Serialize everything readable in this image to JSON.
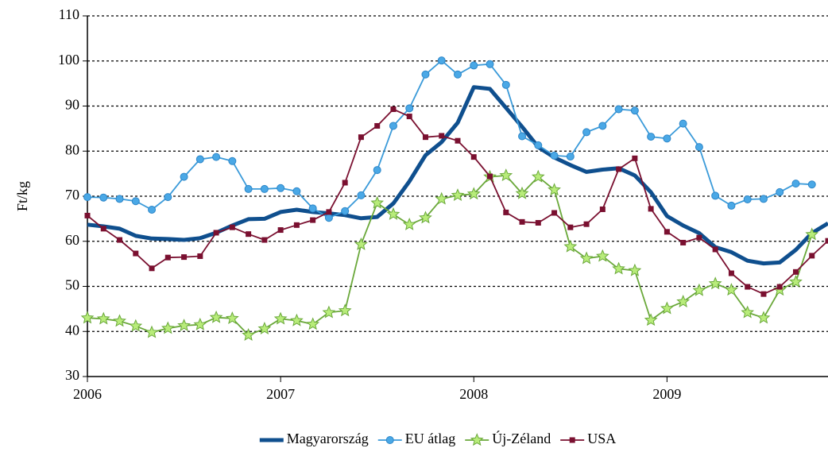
{
  "chart_data": {
    "type": "line",
    "ylabel": "Ft/kg",
    "categories": [
      "2006",
      null,
      null,
      null,
      null,
      null,
      null,
      null,
      null,
      null,
      null,
      null,
      "2007",
      null,
      null,
      null,
      null,
      null,
      null,
      null,
      null,
      null,
      null,
      null,
      "2008",
      null,
      null,
      null,
      null,
      null,
      null,
      null,
      null,
      null,
      null,
      null,
      "2009",
      null,
      null,
      null,
      null,
      null,
      null,
      null,
      null,
      null,
      null
    ],
    "series": [
      {
        "name": "Magyarország",
        "color": "#0f4f8e",
        "marker": "none",
        "values": [
          63.7,
          63.3,
          62.8,
          61.2,
          60.6,
          60.5,
          60.3,
          60.7,
          61.9,
          63.5,
          64.9,
          65.0,
          66.5,
          67.0,
          66.5,
          66.2,
          65.8,
          65.1,
          65.4,
          68.4,
          73.3,
          79.1,
          82.0,
          86.3,
          94.2,
          93.8,
          89.6,
          85.4,
          80.9,
          78.6,
          76.9,
          75.4,
          75.9,
          76.2,
          74.6,
          70.9,
          65.6,
          63.5,
          61.8,
          58.7,
          57.6,
          55.7,
          55.1,
          55.3,
          58.1,
          61.8,
          64.0
        ]
      },
      {
        "name": "EU átlag",
        "color": "#3a9ad9",
        "marker": "circle",
        "values": [
          69.8,
          69.7,
          69.4,
          68.9,
          67.0,
          69.8,
          74.3,
          78.2,
          78.7,
          77.8,
          71.6,
          71.6,
          71.8,
          71.1,
          67.3,
          65.2,
          66.7,
          70.2,
          75.8,
          85.6,
          89.5,
          97.0,
          100.1,
          97.0,
          99.0,
          99.3,
          94.7,
          83.3,
          81.3,
          79.0,
          78.8,
          84.2,
          85.6,
          89.3,
          89.0,
          83.2,
          82.8,
          86.1,
          80.9,
          70.1,
          67.9,
          69.3,
          69.4,
          70.9,
          72.8,
          72.6,
          null
        ]
      },
      {
        "name": "Új-Zéland",
        "color": "#6aa83a",
        "marker": "star",
        "values": [
          43.0,
          42.8,
          42.3,
          41.2,
          39.8,
          40.7,
          41.3,
          41.5,
          43.1,
          42.9,
          39.2,
          40.6,
          42.8,
          42.4,
          41.6,
          44.2,
          44.6,
          59.3,
          68.5,
          66.0,
          63.7,
          65.2,
          69.4,
          70.2,
          70.5,
          74.3,
          74.6,
          70.6,
          74.3,
          71.4,
          58.8,
          56.2,
          56.7,
          53.9,
          53.5,
          42.5,
          45.1,
          46.6,
          49.1,
          50.6,
          49.2,
          44.2,
          43.0,
          49.2,
          51.0,
          61.5,
          null
        ]
      },
      {
        "name": "USA",
        "color": "#7a1030",
        "marker": "square",
        "values": [
          65.7,
          62.8,
          60.3,
          57.3,
          54.0,
          56.4,
          56.5,
          56.7,
          61.9,
          63.1,
          61.6,
          60.3,
          62.5,
          63.6,
          64.7,
          66.5,
          73.0,
          83.1,
          85.6,
          89.3,
          87.7,
          83.1,
          83.4,
          82.3,
          78.7,
          74.4,
          66.4,
          64.3,
          64.1,
          66.3,
          63.1,
          63.8,
          67.1,
          76.0,
          78.4,
          67.2,
          62.1,
          59.7,
          60.8,
          58.2,
          52.9,
          49.9,
          48.3,
          49.9,
          53.2,
          56.8,
          60.1
        ]
      }
    ],
    "ylim": [
      30,
      110
    ],
    "yticks": [
      30,
      40,
      50,
      60,
      70,
      80,
      90,
      100,
      110
    ],
    "grid": true,
    "legend": "bottom"
  }
}
